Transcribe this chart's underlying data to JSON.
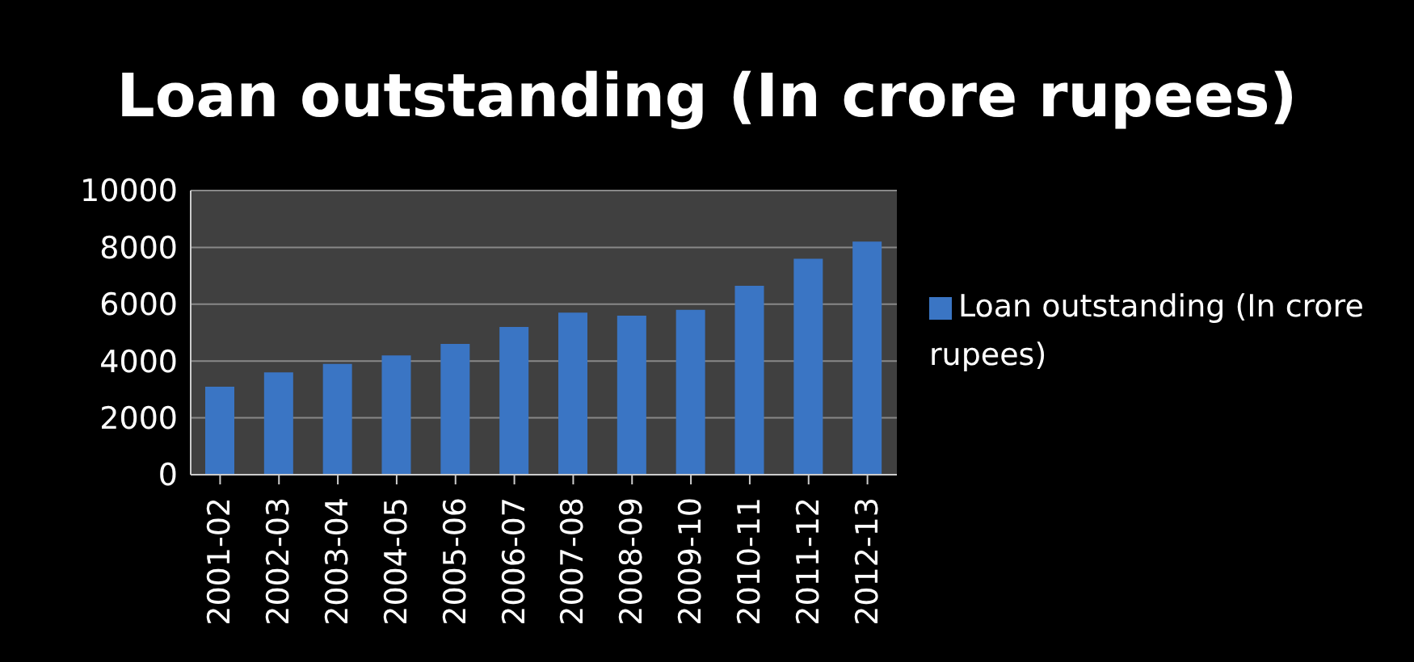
{
  "chart_data": {
    "type": "bar",
    "title": "Loan outstanding (In crore rupees)",
    "categories": [
      "2001-02",
      "2002-03",
      "2003-04",
      "2004-05",
      "2005-06",
      "2006-07",
      "2007-08",
      "2008-09",
      "2009-10",
      "2010-11",
      "2011-12",
      "2012-13"
    ],
    "series": [
      {
        "name": "Loan outstanding (In crore rupees)",
        "color": "#3a75c4",
        "values": [
          3100,
          3600,
          3900,
          4200,
          4600,
          5200,
          5700,
          5600,
          5800,
          6650,
          7600,
          8200
        ]
      }
    ],
    "ylim": [
      0,
      10000
    ],
    "yticks": [
      0,
      2000,
      4000,
      6000,
      8000,
      10000
    ],
    "grid": "y",
    "legend": "right"
  }
}
